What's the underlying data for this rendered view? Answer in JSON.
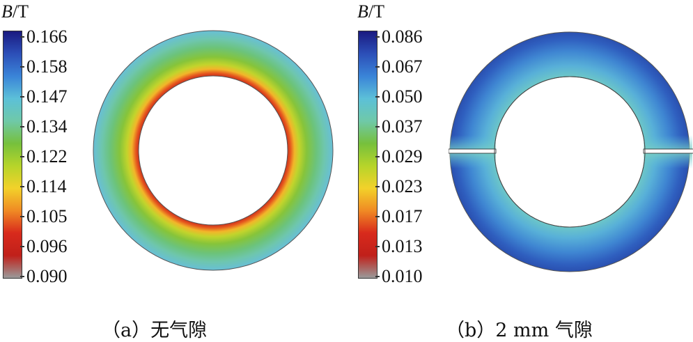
{
  "panels": [
    {
      "unit_var": "B",
      "unit_rest": "/T",
      "ticks": [
        "0.166",
        "0.158",
        "0.147",
        "0.134",
        "0.122",
        "0.114",
        "0.105",
        "0.096",
        "0.090"
      ],
      "caption": "（a）无气隙"
    },
    {
      "unit_var": "B",
      "unit_rest": "/T",
      "ticks": [
        "0.086",
        "0.067",
        "0.050",
        "0.037",
        "0.029",
        "0.023",
        "0.017",
        "0.013",
        "0.010"
      ],
      "caption": "（b）2 mm 气隙"
    }
  ],
  "colors": {
    "scale": [
      "#1a1a80",
      "#2c4fb8",
      "#3a84d8",
      "#5cc0d8",
      "#6fc9a8",
      "#76c03c",
      "#b6d42a",
      "#f2d22a",
      "#f08a24",
      "#d82a1c",
      "#c0201a",
      "#9a9a9a"
    ]
  }
}
